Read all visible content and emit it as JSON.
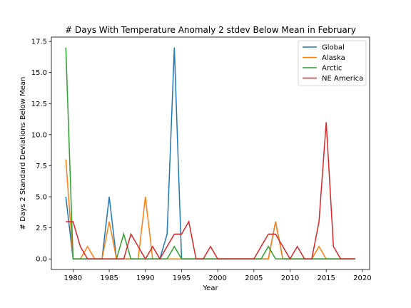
{
  "chart_data": {
    "type": "line",
    "title": "# Days With Temperature Anomaly 2 stdev Below Mean in February",
    "xlabel": "Year",
    "ylabel": "# Days 2 Standard Deviations Below Mean",
    "xlim": [
      1977,
      2021
    ],
    "ylim": [
      -0.85,
      17.85
    ],
    "xticks": [
      1980,
      1985,
      1990,
      1995,
      2000,
      2005,
      2010,
      2015,
      2020
    ],
    "yticks": [
      0.0,
      2.5,
      5.0,
      7.5,
      10.0,
      12.5,
      15.0,
      17.5
    ],
    "ytick_labels": [
      "0.0",
      "2.5",
      "5.0",
      "7.5",
      "10.0",
      "12.5",
      "15.0",
      "17.5"
    ],
    "legend_position": "top-right",
    "grid": false,
    "x": [
      1979,
      1980,
      1981,
      1982,
      1983,
      1984,
      1985,
      1986,
      1987,
      1988,
      1989,
      1990,
      1991,
      1992,
      1993,
      1994,
      1995,
      1996,
      1997,
      1998,
      1999,
      2000,
      2001,
      2002,
      2003,
      2004,
      2005,
      2006,
      2007,
      2008,
      2009,
      2010,
      2011,
      2012,
      2013,
      2014,
      2015,
      2016,
      2017,
      2018,
      2019
    ],
    "series": [
      {
        "name": "Global",
        "color": "#1f77b4",
        "values": [
          5,
          0,
          0,
          0,
          0,
          0,
          5,
          0,
          0,
          0,
          0,
          0,
          0,
          0,
          2,
          17,
          0,
          0,
          0,
          0,
          0,
          0,
          0,
          0,
          0,
          0,
          0,
          0,
          0,
          3,
          0,
          0,
          0,
          0,
          0,
          0,
          0,
          0,
          0,
          0,
          0
        ]
      },
      {
        "name": "Alaska",
        "color": "#ff7f0e",
        "values": [
          8,
          0,
          0,
          1,
          0,
          0,
          3,
          0,
          0,
          0,
          0,
          5,
          0,
          0,
          0,
          0,
          0,
          0,
          0,
          0,
          0,
          0,
          0,
          0,
          0,
          0,
          0,
          0,
          0,
          3,
          0,
          0,
          0,
          0,
          0,
          1,
          0,
          0,
          0,
          0,
          0
        ]
      },
      {
        "name": "Arctic",
        "color": "#2ca02c",
        "values": [
          17,
          0,
          0,
          0,
          0,
          0,
          0,
          0,
          2,
          0,
          0,
          0,
          0,
          0,
          0,
          1,
          0,
          0,
          0,
          0,
          0,
          0,
          0,
          0,
          0,
          0,
          0,
          0,
          1,
          0,
          0,
          0,
          0,
          0,
          0,
          0,
          0,
          0,
          0,
          0,
          0
        ]
      },
      {
        "name": "NE America",
        "color": "#d62728",
        "values": [
          3,
          3,
          1,
          0,
          0,
          0,
          0,
          0,
          0,
          2,
          1,
          0,
          1,
          0,
          1,
          2,
          2,
          3,
          0,
          0,
          1,
          0,
          0,
          0,
          0,
          0,
          0,
          1,
          2,
          2,
          1,
          0,
          1,
          0,
          0,
          3,
          11,
          1,
          0,
          0,
          0
        ]
      }
    ]
  }
}
